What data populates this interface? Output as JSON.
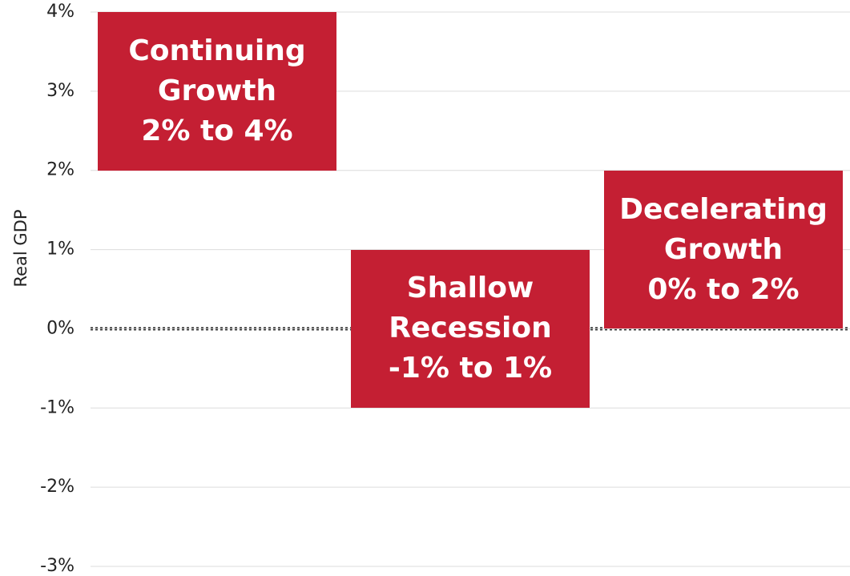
{
  "chart_data": {
    "type": "range-bar",
    "y_label": "Real GDP",
    "categories": [
      "Continuing Growth",
      "Shallow Recession",
      "Decelerating Growth"
    ],
    "values": [
      [
        2,
        4
      ],
      [
        -1,
        1
      ],
      [
        0,
        2
      ]
    ],
    "value_labels": [
      "2% to 4%",
      "-1% to 1%",
      "0% to 2%"
    ],
    "color": "#c41f33",
    "ylim": [
      -3,
      4
    ],
    "yticks": [
      {
        "value": 4,
        "label": "4%"
      },
      {
        "value": 3,
        "label": "3%"
      },
      {
        "value": 2,
        "label": "2%"
      },
      {
        "value": 1,
        "label": "1%"
      },
      {
        "value": 0,
        "label": "0%"
      },
      {
        "value": -1,
        "label": "-1%"
      },
      {
        "value": -2,
        "label": "-2%"
      },
      {
        "value": -3,
        "label": "-3%"
      }
    ],
    "grid": true,
    "zero_line": true
  }
}
